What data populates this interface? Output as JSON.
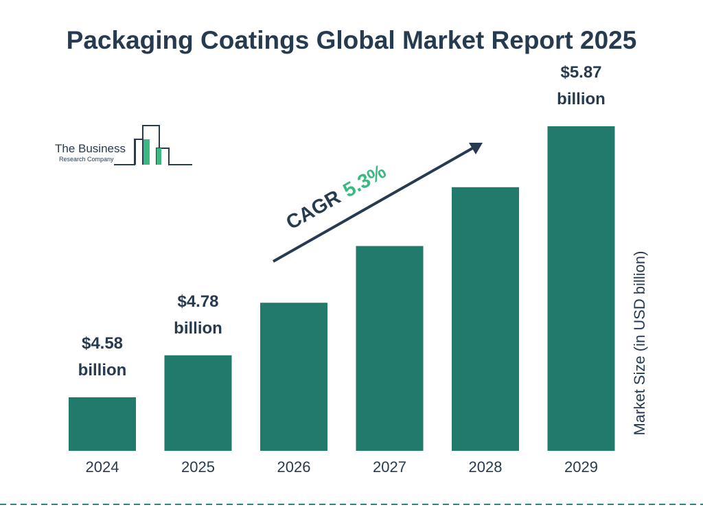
{
  "chart_data": {
    "type": "bar",
    "title": "Packaging Coatings Global Market Report 2025",
    "categories": [
      "2024",
      "2025",
      "2026",
      "2027",
      "2028",
      "2029"
    ],
    "values": [
      4.58,
      4.78,
      5.03,
      5.3,
      5.58,
      5.87
    ],
    "value_labels": [
      "$4.58 billion",
      "$4.78 billion",
      null,
      null,
      null,
      "$5.87 billion"
    ],
    "color": "#217a6b",
    "y_axis_label": "Market Size (in USD billion)",
    "annotation": {
      "label": "CAGR",
      "value": "5.3%"
    },
    "logo": {
      "line1": "The Business",
      "line2": "Research Company"
    }
  }
}
